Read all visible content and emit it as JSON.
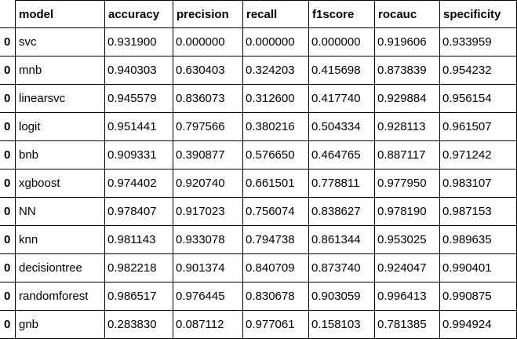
{
  "table": {
    "index_header": "",
    "columns": [
      "model",
      "accuracy",
      "precision",
      "recall",
      "f1score",
      "rocauc",
      "specificity"
    ],
    "rows": [
      {
        "index": "0",
        "cells": [
          "svc",
          "0.931900",
          "0.000000",
          "0.000000",
          "0.000000",
          "0.919606",
          "0.933959"
        ]
      },
      {
        "index": "0",
        "cells": [
          "mnb",
          "0.940303",
          "0.630403",
          "0.324203",
          "0.415698",
          "0.873839",
          "0.954232"
        ]
      },
      {
        "index": "0",
        "cells": [
          "linearsvc",
          "0.945579",
          "0.836073",
          "0.312600",
          "0.417740",
          "0.929884",
          "0.956154"
        ]
      },
      {
        "index": "0",
        "cells": [
          "logit",
          "0.951441",
          "0.797566",
          "0.380216",
          "0.504334",
          "0.928113",
          "0.961507"
        ]
      },
      {
        "index": "0",
        "cells": [
          "bnb",
          "0.909331",
          "0.390877",
          "0.576650",
          "0.464765",
          "0.887117",
          "0.971242"
        ]
      },
      {
        "index": "0",
        "cells": [
          "xgboost",
          "0.974402",
          "0.920740",
          "0.661501",
          "0.778811",
          "0.977950",
          "0.983107"
        ]
      },
      {
        "index": "0",
        "cells": [
          "NN",
          "0.978407",
          "0.917023",
          "0.756074",
          "0.838627",
          "0.978190",
          "0.987153"
        ]
      },
      {
        "index": "0",
        "cells": [
          "knn",
          "0.981143",
          "0.933078",
          "0.794738",
          "0.861344",
          "0.953025",
          "0.989635"
        ]
      },
      {
        "index": "0",
        "cells": [
          "decisiontree",
          "0.982218",
          "0.901374",
          "0.840709",
          "0.873740",
          "0.924047",
          "0.990401"
        ]
      },
      {
        "index": "0",
        "cells": [
          "randomforest",
          "0.986517",
          "0.976445",
          "0.830678",
          "0.903059",
          "0.996413",
          "0.990875"
        ]
      },
      {
        "index": "0",
        "cells": [
          "gnb",
          "0.283830",
          "0.087112",
          "0.977061",
          "0.158103",
          "0.781385",
          "0.994924"
        ]
      }
    ]
  }
}
